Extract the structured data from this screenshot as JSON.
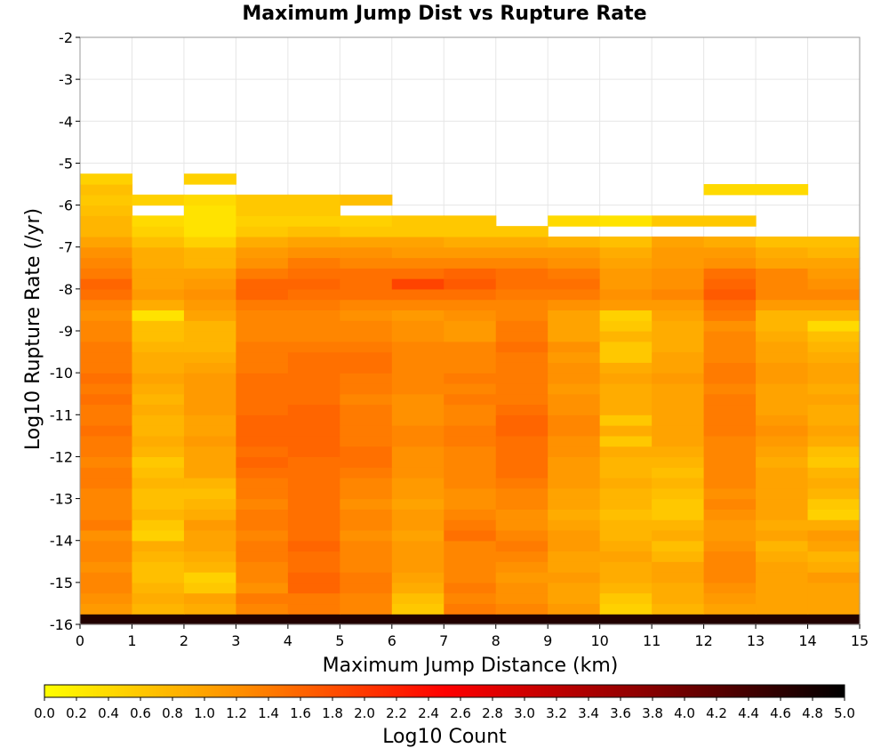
{
  "chart_data": {
    "type": "heatmap",
    "title": "Maximum Jump Dist vs Rupture Rate",
    "xlabel": "Maximum Jump Distance (km)",
    "ylabel": "Log10 Rupture Rate (/yr)",
    "colorbar_label": "Log10 Count",
    "xlim": [
      0,
      15
    ],
    "ylim": [
      -16,
      -2
    ],
    "x_ticks": [
      0,
      1,
      2,
      3,
      4,
      5,
      6,
      7,
      8,
      9,
      10,
      11,
      12,
      13,
      14,
      15
    ],
    "y_ticks": [
      -2,
      -3,
      -4,
      -5,
      -6,
      -7,
      -8,
      -9,
      -10,
      -11,
      -12,
      -13,
      -14,
      -15,
      -16
    ],
    "colorbar_range": [
      0,
      5
    ],
    "colorbar_ticks": [
      "0.0",
      "0.2",
      "0.4",
      "0.6",
      "0.8",
      "1.0",
      "1.2",
      "1.4",
      "1.6",
      "1.8",
      "2.0",
      "2.2",
      "2.4",
      "2.6",
      "2.8",
      "3.0",
      "3.2",
      "3.4",
      "3.6",
      "3.8",
      "4.0",
      "4.2",
      "4.4",
      "4.6",
      "4.8",
      "5.0"
    ],
    "colormap": [
      "#ffff00",
      "#ff8c00",
      "#ff0000",
      "#8b0000",
      "#000000"
    ],
    "grid": true,
    "x_bin_width": 1,
    "y_bin_height": 0.25,
    "y_bin_start": -16,
    "matrix_note": "rows ordered from y = -16 upward in 0.25 steps; columns x = 0..14; null = empty",
    "values": [
      [
        4.7,
        4.7,
        4.7,
        4.7,
        4.7,
        4.7,
        4.7,
        4.7,
        4.7,
        4.7,
        4.7,
        4.7,
        4.7,
        4.7,
        4.7
      ],
      [
        1.1,
        0.8,
        0.9,
        1.3,
        1.4,
        1.3,
        0.6,
        1.4,
        1.3,
        1.1,
        0.5,
        0.8,
        1.0,
        1.0,
        1.0
      ],
      [
        1.2,
        0.9,
        1.0,
        1.4,
        1.4,
        1.3,
        0.7,
        1.3,
        1.2,
        1.0,
        0.6,
        0.9,
        1.1,
        1.0,
        1.0
      ],
      [
        1.3,
        0.8,
        0.6,
        1.2,
        1.6,
        1.4,
        0.9,
        1.4,
        1.2,
        1.0,
        0.8,
        0.9,
        1.2,
        1.0,
        1.0
      ],
      [
        1.3,
        0.7,
        0.5,
        1.3,
        1.6,
        1.4,
        1.0,
        1.3,
        1.1,
        1.1,
        0.9,
        1.0,
        1.3,
        1.0,
        1.1
      ],
      [
        1.2,
        0.7,
        0.8,
        1.3,
        1.5,
        1.3,
        1.1,
        1.3,
        1.2,
        1.0,
        0.9,
        1.0,
        1.3,
        1.0,
        0.9
      ],
      [
        1.3,
        0.8,
        0.9,
        1.4,
        1.5,
        1.3,
        1.1,
        1.3,
        1.3,
        1.0,
        1.0,
        0.8,
        1.3,
        0.9,
        0.8
      ],
      [
        1.3,
        0.9,
        1.0,
        1.4,
        1.6,
        1.3,
        1.1,
        1.3,
        1.4,
        1.1,
        0.9,
        0.7,
        1.2,
        0.8,
        1.0
      ],
      [
        1.2,
        0.5,
        1.0,
        1.3,
        1.5,
        1.2,
        1.0,
        1.5,
        1.3,
        1.1,
        0.8,
        0.9,
        1.1,
        1.0,
        1.1
      ],
      [
        1.4,
        0.6,
        1.1,
        1.4,
        1.5,
        1.3,
        1.1,
        1.4,
        1.2,
        1.0,
        0.8,
        0.8,
        1.1,
        0.9,
        0.9
      ],
      [
        1.3,
        0.8,
        0.9,
        1.4,
        1.5,
        1.3,
        1.1,
        1.3,
        1.2,
        0.9,
        0.7,
        0.6,
        1.2,
        1.0,
        0.5
      ],
      [
        1.3,
        0.7,
        0.8,
        1.3,
        1.5,
        1.2,
        1.0,
        1.2,
        1.3,
        1.0,
        0.8,
        0.6,
        1.3,
        1.0,
        0.6
      ],
      [
        1.3,
        0.7,
        0.7,
        1.4,
        1.5,
        1.3,
        1.1,
        1.2,
        1.3,
        1.0,
        0.8,
        0.7,
        1.2,
        1.0,
        0.8
      ],
      [
        1.4,
        0.8,
        0.8,
        1.4,
        1.5,
        1.3,
        1.1,
        1.3,
        1.4,
        1.1,
        0.9,
        0.8,
        1.3,
        1.0,
        0.9
      ],
      [
        1.4,
        0.7,
        1.0,
        1.5,
        1.5,
        1.4,
        1.2,
        1.3,
        1.5,
        1.1,
        0.8,
        0.7,
        1.3,
        1.0,
        0.8
      ],
      [
        1.3,
        0.6,
        1.0,
        1.6,
        1.5,
        1.5,
        1.2,
        1.3,
        1.5,
        1.1,
        0.8,
        0.8,
        1.3,
        0.9,
        0.6
      ],
      [
        1.4,
        0.8,
        1.0,
        1.5,
        1.6,
        1.5,
        1.2,
        1.3,
        1.5,
        1.2,
        0.9,
        0.9,
        1.3,
        1.0,
        0.7
      ],
      [
        1.4,
        0.9,
        1.1,
        1.6,
        1.6,
        1.4,
        1.3,
        1.4,
        1.5,
        1.2,
        0.6,
        1.0,
        1.3,
        1.1,
        0.9
      ],
      [
        1.5,
        0.8,
        1.0,
        1.6,
        1.6,
        1.4,
        1.3,
        1.4,
        1.6,
        1.3,
        0.9,
        1.0,
        1.4,
        1.2,
        1.0
      ],
      [
        1.4,
        0.8,
        1.0,
        1.6,
        1.6,
        1.4,
        1.2,
        1.3,
        1.6,
        1.3,
        0.6,
        1.0,
        1.4,
        1.1,
        0.9
      ],
      [
        1.4,
        0.9,
        1.1,
        1.5,
        1.6,
        1.4,
        1.2,
        1.3,
        1.5,
        1.2,
        0.9,
        1.0,
        1.4,
        1.0,
        0.9
      ],
      [
        1.5,
        0.8,
        1.1,
        1.5,
        1.5,
        1.3,
        1.2,
        1.4,
        1.4,
        1.2,
        0.9,
        1.0,
        1.4,
        1.0,
        1.0
      ],
      [
        1.4,
        0.9,
        1.1,
        1.5,
        1.5,
        1.4,
        1.3,
        1.3,
        1.4,
        1.1,
        0.9,
        1.0,
        1.3,
        1.0,
        0.9
      ],
      [
        1.5,
        1.0,
        1.1,
        1.5,
        1.5,
        1.4,
        1.3,
        1.4,
        1.4,
        1.2,
        1.0,
        1.1,
        1.4,
        1.1,
        1.0
      ],
      [
        1.4,
        0.9,
        1.0,
        1.4,
        1.5,
        1.5,
        1.3,
        1.3,
        1.4,
        1.2,
        0.9,
        1.0,
        1.4,
        1.1,
        1.0
      ],
      [
        1.4,
        0.9,
        0.9,
        1.4,
        1.5,
        1.5,
        1.3,
        1.3,
        1.4,
        1.1,
        0.6,
        1.0,
        1.3,
        1.0,
        0.9
      ],
      [
        1.4,
        0.8,
        0.8,
        1.4,
        1.4,
        1.4,
        1.3,
        1.3,
        1.5,
        1.2,
        0.6,
        0.9,
        1.3,
        1.0,
        0.8
      ],
      [
        1.3,
        0.7,
        0.8,
        1.3,
        1.3,
        1.3,
        1.2,
        1.1,
        1.4,
        1.0,
        0.8,
        0.9,
        1.3,
        0.9,
        0.7
      ],
      [
        1.3,
        0.7,
        0.8,
        1.3,
        1.3,
        1.3,
        1.2,
        1.1,
        1.4,
        1.0,
        0.6,
        0.9,
        1.2,
        0.8,
        0.4
      ],
      [
        1.2,
        0.3,
        1.0,
        1.3,
        1.3,
        1.2,
        1.1,
        1.2,
        1.3,
        1.0,
        0.5,
        1.0,
        1.4,
        0.8,
        0.8
      ],
      [
        1.3,
        0.9,
        1.1,
        1.4,
        1.4,
        1.3,
        1.3,
        1.3,
        1.3,
        1.2,
        1.1,
        1.1,
        1.5,
        1.1,
        1.1
      ],
      [
        1.5,
        1.1,
        1.2,
        1.6,
        1.5,
        1.5,
        1.5,
        1.5,
        1.4,
        1.4,
        1.2,
        1.3,
        1.7,
        1.3,
        1.3
      ],
      [
        1.6,
        1.0,
        1.1,
        1.6,
        1.6,
        1.5,
        1.9,
        1.7,
        1.5,
        1.5,
        1.1,
        1.2,
        1.6,
        1.3,
        1.2
      ],
      [
        1.4,
        1.0,
        1.0,
        1.4,
        1.5,
        1.5,
        1.5,
        1.6,
        1.5,
        1.4,
        1.1,
        1.2,
        1.5,
        1.3,
        1.1
      ],
      [
        1.3,
        0.9,
        0.8,
        1.2,
        1.4,
        1.3,
        1.3,
        1.3,
        1.3,
        1.2,
        1.0,
        1.1,
        1.2,
        1.0,
        1.0
      ],
      [
        1.2,
        0.9,
        0.8,
        1.1,
        1.2,
        1.2,
        1.1,
        1.1,
        1.1,
        1.1,
        0.9,
        1.1,
        1.1,
        0.9,
        0.8
      ],
      [
        1.0,
        0.7,
        0.5,
        0.9,
        1.0,
        1.0,
        1.0,
        0.9,
        0.9,
        0.8,
        0.7,
        1.0,
        0.9,
        0.7,
        0.7
      ],
      [
        0.8,
        0.5,
        0.3,
        0.6,
        0.7,
        0.6,
        0.6,
        0.6,
        0.6,
        null,
        null,
        null,
        null,
        null,
        null
      ],
      [
        0.8,
        0.4,
        0.3,
        0.5,
        0.5,
        0.5,
        0.6,
        0.6,
        null,
        0.4,
        0.3,
        0.6,
        0.6,
        null,
        null
      ],
      [
        0.7,
        null,
        0.3,
        0.6,
        0.6,
        null,
        null,
        null,
        null,
        null,
        null,
        null,
        null,
        null,
        null
      ],
      [
        0.6,
        0.5,
        0.4,
        0.6,
        0.6,
        0.7,
        null,
        null,
        null,
        null,
        null,
        null,
        null,
        null,
        null
      ],
      [
        0.7,
        null,
        null,
        null,
        null,
        null,
        null,
        null,
        null,
        null,
        null,
        null,
        0.4,
        0.4,
        null
      ],
      [
        0.5,
        null,
        0.5,
        null,
        null,
        null,
        null,
        null,
        null,
        null,
        null,
        null,
        null,
        null,
        null
      ]
    ]
  }
}
